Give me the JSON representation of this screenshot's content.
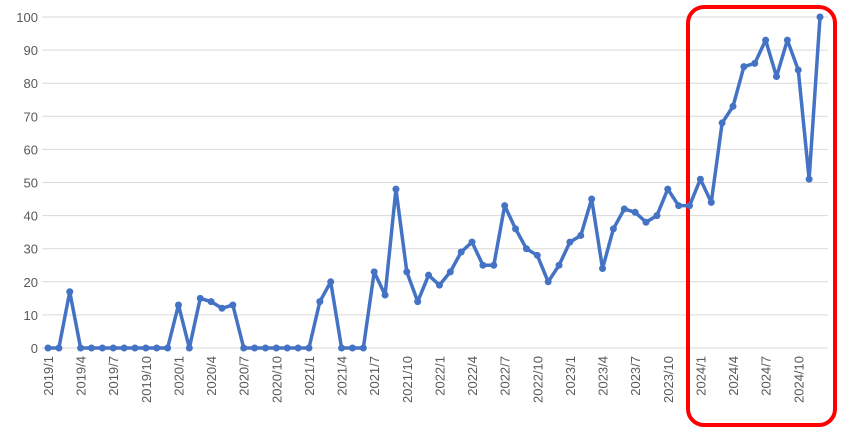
{
  "chart_data": {
    "type": "line",
    "categories": [
      "2019/1",
      null,
      null,
      "2019/4",
      null,
      null,
      "2019/7",
      null,
      null,
      "2019/10",
      null,
      null,
      "2020/1",
      null,
      null,
      "2020/4",
      null,
      null,
      "2020/7",
      null,
      null,
      "2020/10",
      null,
      null,
      "2021/1",
      null,
      null,
      "2021/4",
      null,
      null,
      "2021/7",
      null,
      null,
      "2021/10",
      null,
      null,
      "2022/1",
      null,
      null,
      "2022/4",
      null,
      null,
      "2022/7",
      null,
      null,
      "2022/10",
      null,
      null,
      "2023/1",
      null,
      null,
      "2023/4",
      null,
      null,
      "2023/7",
      null,
      null,
      "2023/10",
      null,
      null,
      "2024/1",
      null,
      null,
      "2024/4",
      null,
      null,
      "2024/7",
      null,
      null,
      "2024/10",
      null,
      null
    ],
    "values": [
      0,
      0,
      17,
      0,
      0,
      0,
      0,
      0,
      0,
      0,
      0,
      0,
      13,
      0,
      15,
      14,
      12,
      13,
      0,
      0,
      0,
      0,
      0,
      0,
      0,
      14,
      20,
      0,
      0,
      0,
      23,
      16,
      48,
      23,
      14,
      22,
      19,
      23,
      29,
      32,
      25,
      25,
      43,
      36,
      30,
      28,
      20,
      25,
      32,
      34,
      45,
      24,
      36,
      42,
      41,
      38,
      40,
      48,
      43,
      43,
      51,
      44,
      68,
      73,
      85,
      86,
      93,
      82,
      93,
      84,
      51,
      100
    ],
    "color": "#4472c4",
    "ylim": [
      0,
      100
    ],
    "yticks": [
      0,
      10,
      20,
      30,
      40,
      50,
      60,
      70,
      80,
      90,
      100
    ],
    "grid": true
  }
}
